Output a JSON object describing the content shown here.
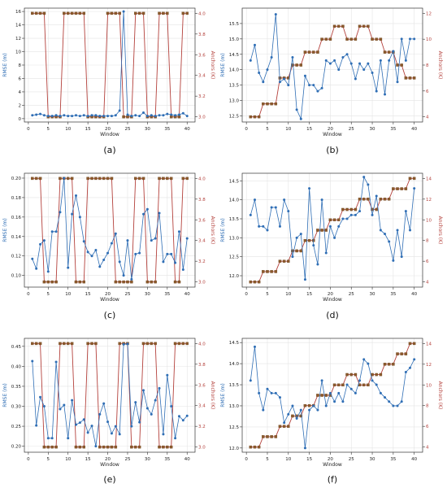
{
  "chart_data": [
    {
      "id": "a",
      "type": "line",
      "caption": "(a)",
      "x": [
        1,
        2,
        3,
        4,
        5,
        6,
        7,
        8,
        9,
        10,
        11,
        12,
        13,
        14,
        15,
        16,
        17,
        18,
        19,
        20,
        21,
        22,
        23,
        24,
        25,
        26,
        27,
        28,
        29,
        30,
        31,
        32,
        33,
        34,
        35,
        36,
        37,
        38,
        39,
        40
      ],
      "xlabel": "Window",
      "ylabel": "RMSE (m)",
      "y2label": "Anchors (K)",
      "ylim": [
        -0.5,
        16.5
      ],
      "y2lim": [
        2.95,
        4.05
      ],
      "xlim": [
        -1,
        42
      ],
      "xticks": [
        0,
        5,
        10,
        15,
        20,
        25,
        30,
        35,
        40
      ],
      "yticks": [
        0,
        2,
        4,
        6,
        8,
        10,
        12,
        14,
        16
      ],
      "y2ticks": [
        3.0,
        3.2,
        3.4,
        3.6,
        3.8,
        4.0
      ],
      "y2tick_labels": [
        "3.0",
        "3.2",
        "3.4",
        "3.6",
        "3.8",
        "4.0"
      ],
      "grid": true,
      "series": [
        {
          "axis": "left",
          "color": "#2f6eb5",
          "values": [
            0.5,
            0.6,
            0.7,
            0.5,
            0.4,
            0.4,
            0.5,
            0.4,
            0.5,
            0.4,
            0.4,
            0.5,
            0.4,
            0.5,
            0.4,
            0.5,
            0.5,
            0.4,
            0.4,
            0.4,
            0.4,
            0.5,
            1.2,
            16.0,
            0.6,
            0.4,
            0.5,
            0.4,
            0.9,
            0.4,
            0.5,
            0.4,
            0.5,
            0.5,
            0.7,
            0.6,
            0.5,
            0.6,
            0.8,
            0.4
          ]
        },
        {
          "axis": "right",
          "color": "#b4413c",
          "values": [
            4,
            4,
            4,
            4,
            3,
            3,
            3,
            3,
            4,
            4,
            4,
            4,
            4,
            4,
            3,
            3,
            3,
            3,
            3,
            4,
            4,
            4,
            4,
            3,
            3,
            3,
            4,
            4,
            4,
            3,
            3,
            3,
            4,
            4,
            4,
            3,
            3,
            3,
            4,
            4
          ]
        }
      ]
    },
    {
      "id": "b",
      "type": "line",
      "caption": "(b)",
      "x": [
        1,
        2,
        3,
        4,
        5,
        6,
        7,
        8,
        9,
        10,
        11,
        12,
        13,
        14,
        15,
        16,
        17,
        18,
        19,
        20,
        21,
        22,
        23,
        24,
        25,
        26,
        27,
        28,
        29,
        30,
        31,
        32,
        33,
        34,
        35,
        36,
        37,
        38,
        39,
        40
      ],
      "xlabel": "Window",
      "ylabel": "RMSE (m)",
      "y2label": "Anchors (K)",
      "ylim": [
        12.3,
        16.0
      ],
      "y2lim": [
        3.6,
        12.4
      ],
      "xlim": [
        -1,
        42
      ],
      "xticks": [
        0,
        5,
        10,
        15,
        20,
        25,
        30,
        35,
        40
      ],
      "yticks": [
        12.5,
        13.0,
        13.5,
        14.0,
        14.5,
        15.0,
        15.5
      ],
      "y2ticks": [
        4,
        6,
        8,
        10,
        12
      ],
      "y2tick_labels": [
        "4",
        "6",
        "8",
        "10",
        "12"
      ],
      "grid": true,
      "series": [
        {
          "axis": "left",
          "color": "#2f6eb5",
          "values": [
            14.3,
            14.8,
            13.9,
            13.6,
            14.0,
            14.4,
            15.8,
            13.6,
            13.7,
            13.5,
            14.4,
            12.7,
            12.4,
            13.8,
            13.5,
            13.5,
            13.3,
            13.4,
            14.3,
            14.2,
            14.3,
            14.0,
            14.4,
            14.5,
            14.2,
            13.7,
            14.2,
            14.0,
            14.2,
            13.9,
            13.3,
            14.3,
            13.2,
            14.3,
            14.6,
            13.6,
            15.0,
            14.3,
            15.0,
            15.0
          ]
        },
        {
          "axis": "right",
          "color": "#b4413c",
          "values": [
            4,
            4,
            4,
            5,
            5,
            5,
            5,
            7,
            7,
            7,
            8,
            8,
            8,
            9,
            9,
            9,
            9,
            10,
            10,
            10,
            11,
            11,
            11,
            10,
            10,
            10,
            11,
            11,
            11,
            10,
            10,
            10,
            9,
            9,
            9,
            8,
            8,
            7,
            7,
            7
          ]
        }
      ]
    },
    {
      "id": "c",
      "type": "line",
      "caption": "(c)",
      "x": [
        1,
        2,
        3,
        4,
        5,
        6,
        7,
        8,
        9,
        10,
        11,
        12,
        13,
        14,
        15,
        16,
        17,
        18,
        19,
        20,
        21,
        22,
        23,
        24,
        25,
        26,
        27,
        28,
        29,
        30,
        31,
        32,
        33,
        34,
        35,
        36,
        37,
        38,
        39,
        40
      ],
      "xlabel": "Window",
      "ylabel": "RMSE (m)",
      "y2label": "Anchors (K)",
      "ylim": [
        0.088,
        0.205
      ],
      "y2lim": [
        2.95,
        4.05
      ],
      "xlim": [
        -1,
        42
      ],
      "xticks": [
        0,
        5,
        10,
        15,
        20,
        25,
        30,
        35,
        40
      ],
      "yticks": [
        0.1,
        0.12,
        0.14,
        0.16,
        0.18,
        0.2
      ],
      "y2ticks": [
        3.0,
        3.2,
        3.4,
        3.6,
        3.8,
        4.0
      ],
      "y2tick_labels": [
        "3.0",
        "3.2",
        "3.4",
        "3.6",
        "3.8",
        "4.0"
      ],
      "grid": true,
      "series": [
        {
          "axis": "left",
          "color": "#2f6eb5",
          "values": [
            0.117,
            0.107,
            0.132,
            0.136,
            0.104,
            0.145,
            0.145,
            0.165,
            0.2,
            0.108,
            0.163,
            0.182,
            0.16,
            0.135,
            0.124,
            0.12,
            0.126,
            0.109,
            0.116,
            0.123,
            0.133,
            0.143,
            0.114,
            0.1,
            0.136,
            0.096,
            0.122,
            0.123,
            0.163,
            0.168,
            0.136,
            0.138,
            0.164,
            0.114,
            0.122,
            0.122,
            0.113,
            0.145,
            0.106,
            0.138
          ]
        },
        {
          "axis": "right",
          "color": "#b4413c",
          "values": [
            4,
            4,
            4,
            3,
            3,
            3,
            3,
            4,
            4,
            4,
            4,
            3,
            3,
            3,
            4,
            4,
            4,
            4,
            4,
            4,
            4,
            3,
            3,
            3,
            3,
            3,
            4,
            4,
            4,
            3,
            3,
            3,
            4,
            4,
            4,
            4,
            3,
            3,
            4,
            4
          ]
        }
      ]
    },
    {
      "id": "d",
      "type": "line",
      "caption": "(d)",
      "x": [
        1,
        2,
        3,
        4,
        5,
        6,
        7,
        8,
        9,
        10,
        11,
        12,
        13,
        14,
        15,
        16,
        17,
        18,
        19,
        20,
        21,
        22,
        23,
        24,
        25,
        26,
        27,
        28,
        29,
        30,
        31,
        32,
        33,
        34,
        35,
        36,
        37,
        38,
        39,
        40
      ],
      "xlabel": "Window",
      "ylabel": "RMSE (m)",
      "y2label": "Anchors (K)",
      "ylim": [
        11.7,
        14.7
      ],
      "y2lim": [
        3.5,
        14.5
      ],
      "xlim": [
        -1,
        42
      ],
      "xticks": [
        0,
        5,
        10,
        15,
        20,
        25,
        30,
        35,
        40
      ],
      "yticks": [
        12.0,
        12.5,
        13.0,
        13.5,
        14.0,
        14.5
      ],
      "y2ticks": [
        4,
        6,
        8,
        10,
        12,
        14
      ],
      "y2tick_labels": [
        "4",
        "6",
        "8",
        "10",
        "12",
        "14"
      ],
      "grid": true,
      "series": [
        {
          "axis": "left",
          "color": "#2f6eb5",
          "values": [
            13.6,
            14.0,
            13.3,
            13.3,
            13.2,
            13.8,
            13.8,
            13.3,
            14.0,
            13.7,
            12.5,
            13.0,
            13.1,
            11.9,
            14.3,
            12.8,
            12.3,
            14.0,
            12.6,
            13.3,
            13.0,
            13.3,
            13.5,
            13.5,
            13.6,
            13.6,
            13.7,
            14.6,
            14.4,
            13.6,
            14.1,
            13.2,
            13.1,
            12.9,
            12.4,
            13.2,
            12.5,
            13.7,
            13.2,
            14.3
          ]
        },
        {
          "axis": "right",
          "color": "#b4413c",
          "values": [
            4,
            4,
            4,
            5,
            5,
            5,
            5,
            6,
            6,
            6,
            7,
            7,
            7,
            8,
            8,
            8,
            9,
            9,
            9,
            10,
            10,
            10,
            11,
            11,
            11,
            11,
            12,
            12,
            12,
            11,
            11,
            12,
            12,
            12,
            13,
            13,
            13,
            13,
            14,
            14
          ]
        }
      ]
    },
    {
      "id": "e",
      "type": "line",
      "caption": "(e)",
      "x": [
        1,
        2,
        3,
        4,
        5,
        6,
        7,
        8,
        9,
        10,
        11,
        12,
        13,
        14,
        15,
        16,
        17,
        18,
        19,
        20,
        21,
        22,
        23,
        24,
        25,
        26,
        27,
        28,
        29,
        30,
        31,
        32,
        33,
        34,
        35,
        36,
        37,
        38,
        39,
        40
      ],
      "xlabel": "Window",
      "ylabel": "RMSE (m)",
      "y2label": "Anchors (K)",
      "ylim": [
        0.185,
        0.47
      ],
      "y2lim": [
        2.95,
        4.05
      ],
      "xlim": [
        -1,
        42
      ],
      "xticks": [
        0,
        5,
        10,
        15,
        20,
        25,
        30,
        35,
        40
      ],
      "yticks": [
        0.2,
        0.25,
        0.3,
        0.35,
        0.4,
        0.45
      ],
      "y2ticks": [
        3.0,
        3.2,
        3.4,
        3.6,
        3.8,
        4.0
      ],
      "y2tick_labels": [
        "3.0",
        "3.2",
        "3.4",
        "3.6",
        "3.8",
        "4.0"
      ],
      "grid": true,
      "series": [
        {
          "axis": "left",
          "color": "#2f6eb5",
          "values": [
            0.413,
            0.252,
            0.323,
            0.3,
            0.22,
            0.22,
            0.411,
            0.293,
            0.303,
            0.22,
            0.315,
            0.254,
            0.259,
            0.267,
            0.234,
            0.251,
            0.2,
            0.28,
            0.307,
            0.261,
            0.232,
            0.25,
            0.23,
            0.455,
            0.456,
            0.25,
            0.31,
            0.26,
            0.34,
            0.295,
            0.28,
            0.315,
            0.345,
            0.23,
            0.378,
            0.3,
            0.22,
            0.275,
            0.265,
            0.276
          ]
        },
        {
          "axis": "right",
          "color": "#b4413c",
          "values": [
            4,
            4,
            4,
            3,
            3,
            3,
            3,
            4,
            4,
            4,
            4,
            3,
            3,
            3,
            4,
            4,
            4,
            3,
            3,
            3,
            3,
            3,
            4,
            4,
            4,
            3,
            3,
            3,
            4,
            4,
            4,
            4,
            3,
            3,
            3,
            3,
            4,
            4,
            4,
            4
          ]
        }
      ]
    },
    {
      "id": "f",
      "type": "line",
      "caption": "(f)",
      "x": [
        1,
        2,
        3,
        4,
        5,
        6,
        7,
        8,
        9,
        10,
        11,
        12,
        13,
        14,
        15,
        16,
        17,
        18,
        19,
        20,
        21,
        22,
        23,
        24,
        25,
        26,
        27,
        28,
        29,
        30,
        31,
        32,
        33,
        34,
        35,
        36,
        37,
        38,
        39,
        40
      ],
      "xlabel": "Window",
      "ylabel": "RMSE (m)",
      "y2label": "Anchors (K)",
      "ylim": [
        11.9,
        14.6
      ],
      "y2lim": [
        3.5,
        14.5
      ],
      "xlim": [
        -1,
        42
      ],
      "xticks": [
        0,
        5,
        10,
        15,
        20,
        25,
        30,
        35,
        40
      ],
      "yticks": [
        12.0,
        12.5,
        13.0,
        13.5,
        14.0,
        14.5
      ],
      "y2ticks": [
        4,
        6,
        8,
        10,
        12,
        14
      ],
      "y2tick_labels": [
        "4",
        "6",
        "8",
        "10",
        "12",
        "14"
      ],
      "grid": true,
      "series": [
        {
          "axis": "left",
          "color": "#2f6eb5",
          "values": [
            13.6,
            14.4,
            13.3,
            12.9,
            13.4,
            13.3,
            13.3,
            13.2,
            12.6,
            12.8,
            13.0,
            12.7,
            12.9,
            12.0,
            12.9,
            13.0,
            12.9,
            13.6,
            13.0,
            13.3,
            13.1,
            13.3,
            13.1,
            13.5,
            13.4,
            13.3,
            13.6,
            14.1,
            14.0,
            13.6,
            13.5,
            13.3,
            13.2,
            13.1,
            13.0,
            13.0,
            13.1,
            13.8,
            13.9,
            14.1
          ]
        },
        {
          "axis": "right",
          "color": "#b4413c",
          "values": [
            4,
            4,
            4,
            5,
            5,
            5,
            5,
            6,
            6,
            6,
            7,
            7,
            7,
            8,
            8,
            8,
            9,
            9,
            9,
            9,
            10,
            10,
            10,
            11,
            11,
            11,
            10,
            10,
            10,
            11,
            11,
            11,
            12,
            12,
            12,
            13,
            13,
            13,
            14,
            14
          ]
        }
      ]
    }
  ]
}
